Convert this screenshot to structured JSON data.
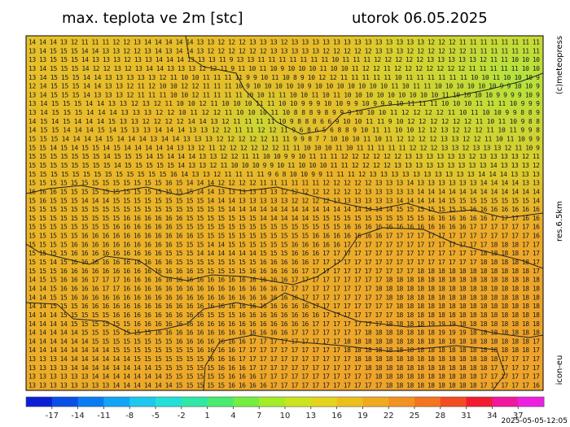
{
  "header": {
    "title": "max. teplota ve 2m [stc]",
    "date": "utorok 06.05.2025"
  },
  "side_labels": {
    "copyright": "(c)meteopress",
    "resolution": "res.6.5km",
    "model": "icon-eu"
  },
  "timestamp": "2025-05-05-12:05",
  "map": {
    "grid_rows": [
      "14 14 14 13 12 11 11 11 12 12 13 14 14 14 14 14 13 13 12 12 12 13 13 13 12 13 13 13 13 13 13 13 13 13 13 13 13 13 12 12 12 11 11 11 11 11 11 11 11",
      "13 14 15 15 15 14 14 13 13 12 12 13 14 13 14 14 13 12 12 12 12 12 12 13 13 13 13 13 12 12 12 12 12 13 13 13 12 12 12 12 12 12 11 11 11 11 11 11 11",
      "13 13 15 15 15 14 13 13 13 12 13 13 14 14 14 13 13 13 11 9 13 13 11 11 11 11 11 11 11 10 11 11 11 12 12 12 12 12 13 13 13 13 13 12 11 11 10 10 10",
      "13 14 15 15 15 14 12 12 13 12 13 14 14 13 13 13 12 12 11 9 11 10 11 10 9 10 10 10 11 10 10 11 12 12 11 12 12 12 12 12 12 12 11 11 11 11 11 10 10",
      "13 14 15 15 15 14 14 13 13 13 13 13 12 11 10 10 11 11 11 11 9 9 10 11 10 8 9 10 12 12 11 11 11 11 11 10 11 11 11 11 11 11 10 10 11 10 10 10 9",
      "12 14 15 15 15 14 14 13 13 12 11 12 10 10 12 12 11 11 11 10 9 10 10 10 10 10 9 10 10 10 10 10 10 10 11 10 11 11 10 10 10 10 10 10 9 9 10 10 9",
      "13 14 15 15 15 14 13 13 13 12 11 11 11 10 10 12 11 11 11 11 10 10 11 11 10 10 11 10 11 10 10 10 10 10 10 10 10 10 11 10 10 10 10 9 9 9 9 10 9",
      "13 14 15 15 15 14 14 13 13 12 13 12 11 10 10 12 11 10 10 10 11 11 10 10 9 9 9 10 10 9 9 10 9 9 9 10 11 11 11 10 10 10 11 11 11 10 9 9 9",
      "13 14 15 15 15 14 14 14 13 13 13 12 12 10 11 12 12 11 10 10 10 11 10 8 8 8 9 8 9 9 9 10 10 10 11 12 12 12 12 11 10 11 10 10 9 9 8 8 9",
      "14 15 14 15 14 14 14 15 13 13 12 12 12 12 14 14 13 12 11 11 11 11 10 9 8 8 8 6 6 9 10 10 11 11 9 10 12 12 12 12 12 12 11 10 11 10 9 8 8",
      "14 15 15 14 14 14 15 14 15 13 13 14 14 14 13 13 12 12 11 11 12 12 11 9 6 8 6 5 6 8 8 9 10 11 11 10 10 12 12 13 12 12 12 11 10 11 9 9 8",
      "15 15 15 14 14 14 14 15 14 14 14 13 14 14 13 13 13 12 12 12 12 12 11 11 9 9 8 7 7 10 10 10 11 10 11 12 12 12 12 13 13 12 12 11 10 11 10 9 9",
      "15 15 14 15 14 15 15 14 15 14 14 14 14 14 13 13 12 11 12 12 12 12 12 12 11 11 10 10 10 11 10 11 11 11 11 11 12 12 12 13 13 12 13 13 13 12 11 10 9",
      "15 15 15 15 15 15 15 14 15 15 15 14 15 14 14 14 13 13 12 12 11 11 10 10 9 9 10 11 11 11 12 12 12 12 12 12 13 13 13 13 13 13 12 13 13 13 13 12 11",
      "15 15 15 15 15 15 15 15 14 15 15 15 15 15 14 13 13 12 11 10 10 10 9 9 10 11 10 10 10 11 11 12 12 12 12 13 13 13 13 13 13 13 13 13 14 13 13 13 12",
      "15 15 15 15 15 15 15 15 15 15 15 15 15 16 14 13 13 12 11 11 11 11 9 6 8 10 10 9 9 11 11 11 12 13 13 13 13 13 13 13 13 13 13 14 14 14 13 13 13",
      "15 15 15 15 15 15 15 15 15 15 15 15 15 16 15 14 14 14 12 12 12 12 11 11 11 11 11 11 12 12 12 12 12 13 13 13 14 13 13 13 13 13 13 14 14 14 14 13 13",
      "16 16 16 15 15 15 15 15 15 15 15 15 15 15 15 15 14 14 13 13 13 13 13 13 12 12 12 12 12 12 12 12 13 13 13 13 13 14 14 14 14 14 14 14 14 14 14 14 14",
      "15 16 15 15 15 14 14 14 15 15 15 15 15 15 15 15 15 14 14 14 13 13 13 13 13 12 12 12 12 13 13 13 13 13 13 14 14 14 14 14 15 15 15 15 15 15 15 15 14",
      "15 15 15 15 15 15 15 15 15 15 15 15 15 15 15 15 15 15 15 14 14 14 14 14 14 14 14 14 14 14 14 14 14 14 14 15 15 15 15 15 15 15 16 16 16 16 16 16 16",
      "15 15 15 15 15 15 15 15 15 16 16 16 16 16 16 15 15 15 15 15 15 15 14 14 14 14 14 15 15 15 15 15 15 15 15 15 15 15 16 16 16 16 16 16 17 17 17 16 16",
      "15 15 15 15 15 15 15 15 16 16 16 16 16 16 15 15 15 15 15 15 15 15 15 15 15 15 15 15 15 15 16 16 16 16 16 16 16 16 16 16 16 16 17 17 17 17 17 17 16",
      "15 15 15 15 15 16 16 16 16 16 16 16 16 16 16 16 15 15 15 15 15 15 15 15 15 15 15 16 16 16 16 16 16 16 17 17 17 17 17 17 17 17 17 17 17 17 17 17 16",
      "15 15 15 15 16 16 16 16 16 16 16 16 16 16 15 15 15 14 14 15 15 15 15 15 15 16 16 16 16 16 17 17 17 17 17 17 17 17 17 17 17 17 17 17 18 18 18 17 17",
      "15 15 15 15 16 16 16 16 16 16 16 16 16 15 15 15 14 14 14 14 14 14 15 15 15 16 16 16 17 17 17 17 17 17 17 17 17 17 17 17 17 17 17 18 18 18 18 17 17",
      "15 15 14 15 16 16 16 16 16 16 16 16 16 16 15 15 15 15 15 15 15 15 16 16 16 16 16 17 17 17 17 17 17 17 17 17 17 17 17 17 17 17 17 18 18 18 18 18 17",
      "15 15 15 16 16 16 16 16 16 16 16 16 16 16 16 16 15 15 15 15 15 16 16 16 16 16 17 17 17 17 17 17 17 17 17 17 17 18 18 18 18 18 18 18 18 18 18 18 17",
      "14 15 15 16 16 16 17 17 17 16 16 16 16 16 16 16 16 16 16 16 16 16 16 16 16 17 17 17 17 17 17 17 17 17 18 18 18 18 18 18 18 18 18 18 18 18 18 18 18",
      "14 14 15 16 16 16 16 17 17 16 16 16 16 16 16 16 16 16 16 16 16 16 16 16 17 17 17 17 17 17 17 17 17 18 18 18 18 18 18 18 18 18 18 18 18 18 18 18 18",
      "14 14 15 15 16 16 16 16 16 16 16 16 16 16 16 16 16 16 16 16 16 16 16 16 16 16 17 17 17 17 17 17 17 17 18 18 18 18 18 18 18 18 18 18 18 18 18 18 18",
      "14 14 15 15 15 16 16 16 16 16 16 16 16 16 16 16 16 16 16 16 16 16 16 16 16 16 16 17 17 17 17 17 17 17 17 18 18 18 18 18 18 18 18 18 18 18 18 18 18",
      "14 14 14 15 15 15 15 15 16 16 16 16 16 16 16 16 16 15 15 15 16 16 16 16 16 16 16 16 17 17 17 17 17 17 17 18 18 18 18 18 18 18 18 18 18 18 18 18 18",
      "14 14 14 14 15 15 15 15 15 15 16 16 16 16 16 16 16 16 16 16 16 16 16 16 16 16 16 17 17 17 17 17 17 17 18 18 18 18 19 19 19 18 18 18 18 18 18 18 18",
      "14 14 14 14 14 15 15 15 15 15 15 15 16 16 16 16 16 16 16 16 16 16 16 16 16 17 17 17 17 17 17 17 18 18 18 18 18 18 18 19 19 19 18 18 18 18 18 18 18",
      "14 14 14 14 14 14 15 15 15 15 15 15 15 15 16 16 16 16 16 16 16 17 17 17 17 17 17 17 17 17 18 18 18 18 18 18 18 18 18 18 18 18 18 18 18 18 18 18 17",
      "14 14 14 14 14 14 14 14 15 15 15 15 15 15 15 15 16 16 16 16 17 17 17 17 17 17 17 17 17 17 18 18 18 18 18 18 18 18 18 18 18 18 18 18 18 18 18 18 17",
      "13 13 13 14 14 14 14 14 14 14 15 15 15 15 15 15 15 16 16 16 17 17 17 17 17 17 17 17 17 17 17 18 18 18 18 18 18 18 18 18 18 18 18 18 18 17 17 17 17",
      "13 13 13 13 14 14 14 14 14 14 14 14 15 15 15 15 15 15 16 16 16 17 17 17 17 17 17 17 17 17 17 17 18 18 18 18 18 18 18 18 18 18 18 18 17 17 17 17 17",
      "13 13 13 13 13 13 14 14 14 14 14 14 14 15 15 15 15 15 15 16 16 16 17 17 17 17 17 17 17 17 17 17 17 18 18 18 18 18 18 18 18 18 18 17 17 17 17 17 17",
      "13 13 13 13 13 13 13 13 14 14 14 14 14 14 15 15 15 15 15 16 16 16 16 17 17 17 17 17 17 17 17 17 17 17 18 18 18 18 18 18 18 18 18 17 17 17 17 17 16"
    ]
  },
  "colorbar": {
    "lim": [
      -20,
      40
    ],
    "ticks": [
      -17,
      -14,
      -11,
      -8,
      -5,
      -2,
      1,
      4,
      7,
      10,
      13,
      16,
      19,
      22,
      25,
      28,
      31,
      34,
      37
    ],
    "colors": [
      "#0a1fd6",
      "#0a4ee8",
      "#0a7cf2",
      "#12a4f5",
      "#1cc8f0",
      "#22e0d8",
      "#2ee8a8",
      "#48ec70",
      "#74ee40",
      "#a4ec26",
      "#cce41e",
      "#e4d41c",
      "#ecc01c",
      "#f0aa1e",
      "#f29220",
      "#f47420",
      "#f44c22",
      "#f21c30",
      "#f0189c",
      "#ee20e0"
    ]
  }
}
